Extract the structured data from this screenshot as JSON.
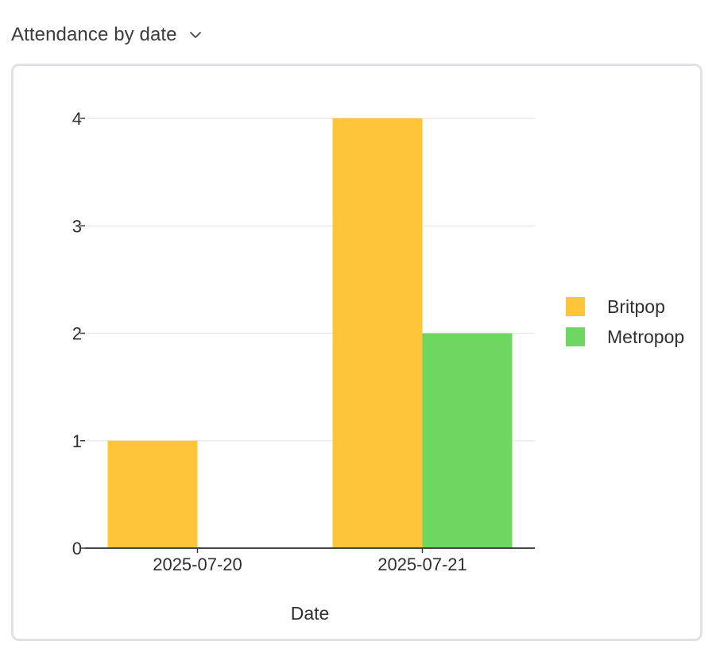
{
  "header": {
    "title": "Attendance by date",
    "dropdown_icon": "chevron-down-icon"
  },
  "chart_data": {
    "type": "bar",
    "title": "",
    "xlabel": "Date",
    "ylabel": "",
    "categories": [
      "2025-07-20",
      "2025-07-21"
    ],
    "series": [
      {
        "name": "Britpop",
        "values": [
          1,
          4
        ],
        "color": "#FFC53A"
      },
      {
        "name": "Metropop",
        "values": [
          0,
          2
        ],
        "color": "#6DD761"
      }
    ],
    "ylim": [
      0,
      4
    ],
    "yticks": [
      "0",
      "1",
      "2",
      "3",
      "4"
    ],
    "grid": true,
    "legend": "right"
  }
}
